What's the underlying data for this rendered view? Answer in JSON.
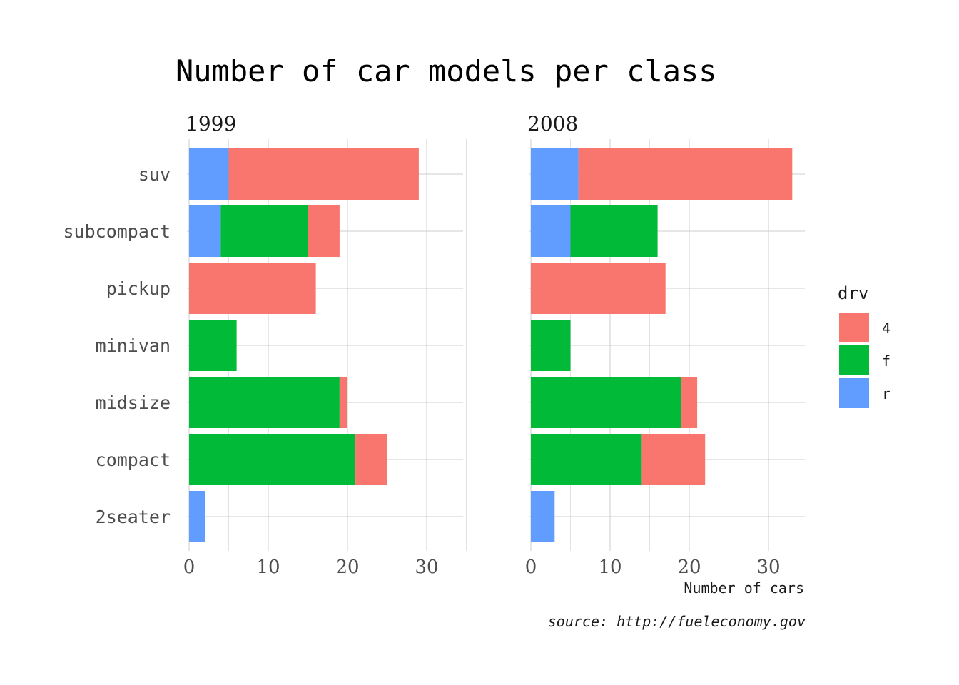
{
  "chart_data": {
    "type": "bar",
    "orientation": "horizontal",
    "stacked": true,
    "title": "Number of car models per class",
    "xlabel": "Number of cars",
    "ylabel": "",
    "caption": "source: http://fueleconomy.gov",
    "xlim": [
      0,
      35
    ],
    "x_ticks": [
      0,
      10,
      20,
      30
    ],
    "x_tick_labels": [
      "0",
      "10",
      "20",
      "30"
    ],
    "categories": [
      "2seater",
      "compact",
      "midsize",
      "minivan",
      "pickup",
      "subcompact",
      "suv"
    ],
    "grid": true,
    "legend": {
      "title": "drv",
      "position": "right",
      "entries": [
        {
          "key": "4",
          "label": "4",
          "color": "#F8766D"
        },
        {
          "key": "f",
          "label": "f",
          "color": "#00BA38"
        },
        {
          "key": "r",
          "label": "r",
          "color": "#619CFF"
        }
      ]
    },
    "stack_order": [
      "r",
      "f",
      "4"
    ],
    "facets": [
      {
        "label": "1999",
        "series": [
          {
            "name": "4",
            "values": [
              0,
              4,
              1,
              0,
              16,
              4,
              24
            ]
          },
          {
            "name": "f",
            "values": [
              0,
              21,
              19,
              6,
              0,
              11,
              0
            ]
          },
          {
            "name": "r",
            "values": [
              2,
              0,
              0,
              0,
              0,
              4,
              5
            ]
          }
        ]
      },
      {
        "label": "2008",
        "series": [
          {
            "name": "4",
            "values": [
              0,
              8,
              2,
              0,
              17,
              0,
              27
            ]
          },
          {
            "name": "f",
            "values": [
              0,
              14,
              19,
              5,
              0,
              11,
              0
            ]
          },
          {
            "name": "r",
            "values": [
              3,
              0,
              0,
              0,
              0,
              5,
              6
            ]
          }
        ]
      }
    ]
  }
}
